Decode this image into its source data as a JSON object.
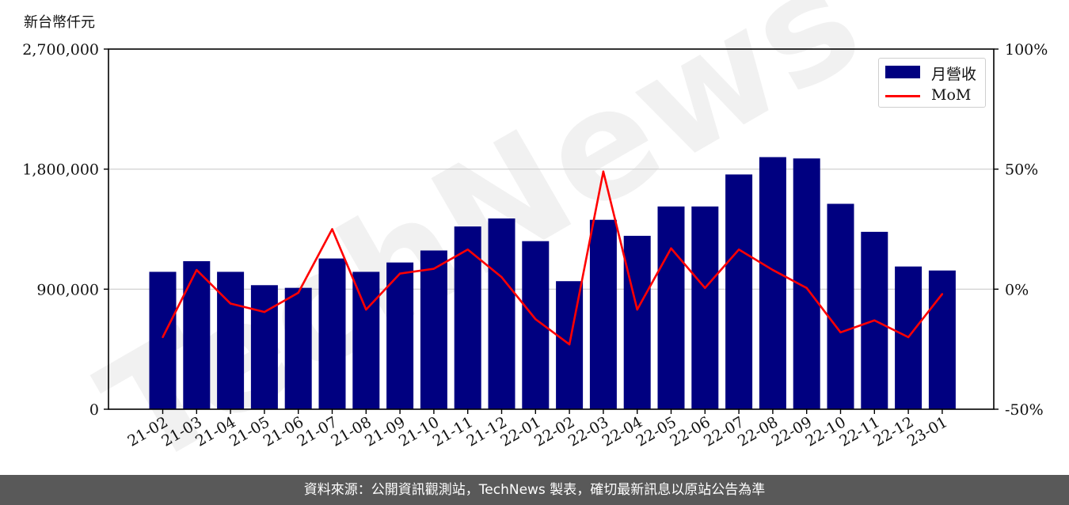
{
  "chart_data": {
    "type": "bar",
    "unit_label": "新台幣仟元",
    "categories": [
      "21-02",
      "21-03",
      "21-04",
      "21-05",
      "21-06",
      "21-07",
      "21-08",
      "21-09",
      "21-10",
      "21-11",
      "21-12",
      "22-01",
      "22-02",
      "22-03",
      "22-04",
      "22-05",
      "22-06",
      "22-07",
      "22-08",
      "22-09",
      "22-10",
      "22-11",
      "22-12",
      "23-01"
    ],
    "series": [
      {
        "name": "月營收",
        "type": "bar",
        "axis": "left",
        "color": "#000080",
        "values": [
          1030000,
          1110000,
          1030000,
          930000,
          910000,
          1130000,
          1030000,
          1100000,
          1190000,
          1370000,
          1430000,
          1260000,
          960000,
          1420000,
          1300000,
          1520000,
          1520000,
          1760000,
          1890000,
          1880000,
          1540000,
          1330000,
          1070000,
          1040000
        ]
      },
      {
        "name": "MoM",
        "type": "line",
        "axis": "right",
        "color": "#ff0000",
        "values": [
          -20,
          8,
          -6,
          -9.5,
          -1.5,
          25,
          -8.5,
          6.5,
          8.5,
          16.5,
          5,
          -12.5,
          -23,
          49,
          -8.5,
          17,
          0.5,
          16.5,
          8,
          0.5,
          -18,
          -13,
          -20,
          -2
        ]
      }
    ],
    "y_left": {
      "ylim": [
        0,
        2700000
      ],
      "ticks": [
        0,
        900000,
        1800000,
        2700000
      ],
      "tick_labels": [
        "0",
        "900,000",
        "1,800,000",
        "2,700,000"
      ]
    },
    "y_right": {
      "ylim": [
        -50,
        100
      ],
      "ticks": [
        -50,
        0,
        50,
        100
      ],
      "tick_labels": [
        "-50%",
        "0%",
        "50%",
        "100%"
      ]
    },
    "grid": "horizontal",
    "legend": "top-right",
    "watermark": "TechNews"
  },
  "footer": {
    "text": "資料來源：公開資訊觀測站，TechNews 製表，確切最新訊息以原站公告為準"
  }
}
